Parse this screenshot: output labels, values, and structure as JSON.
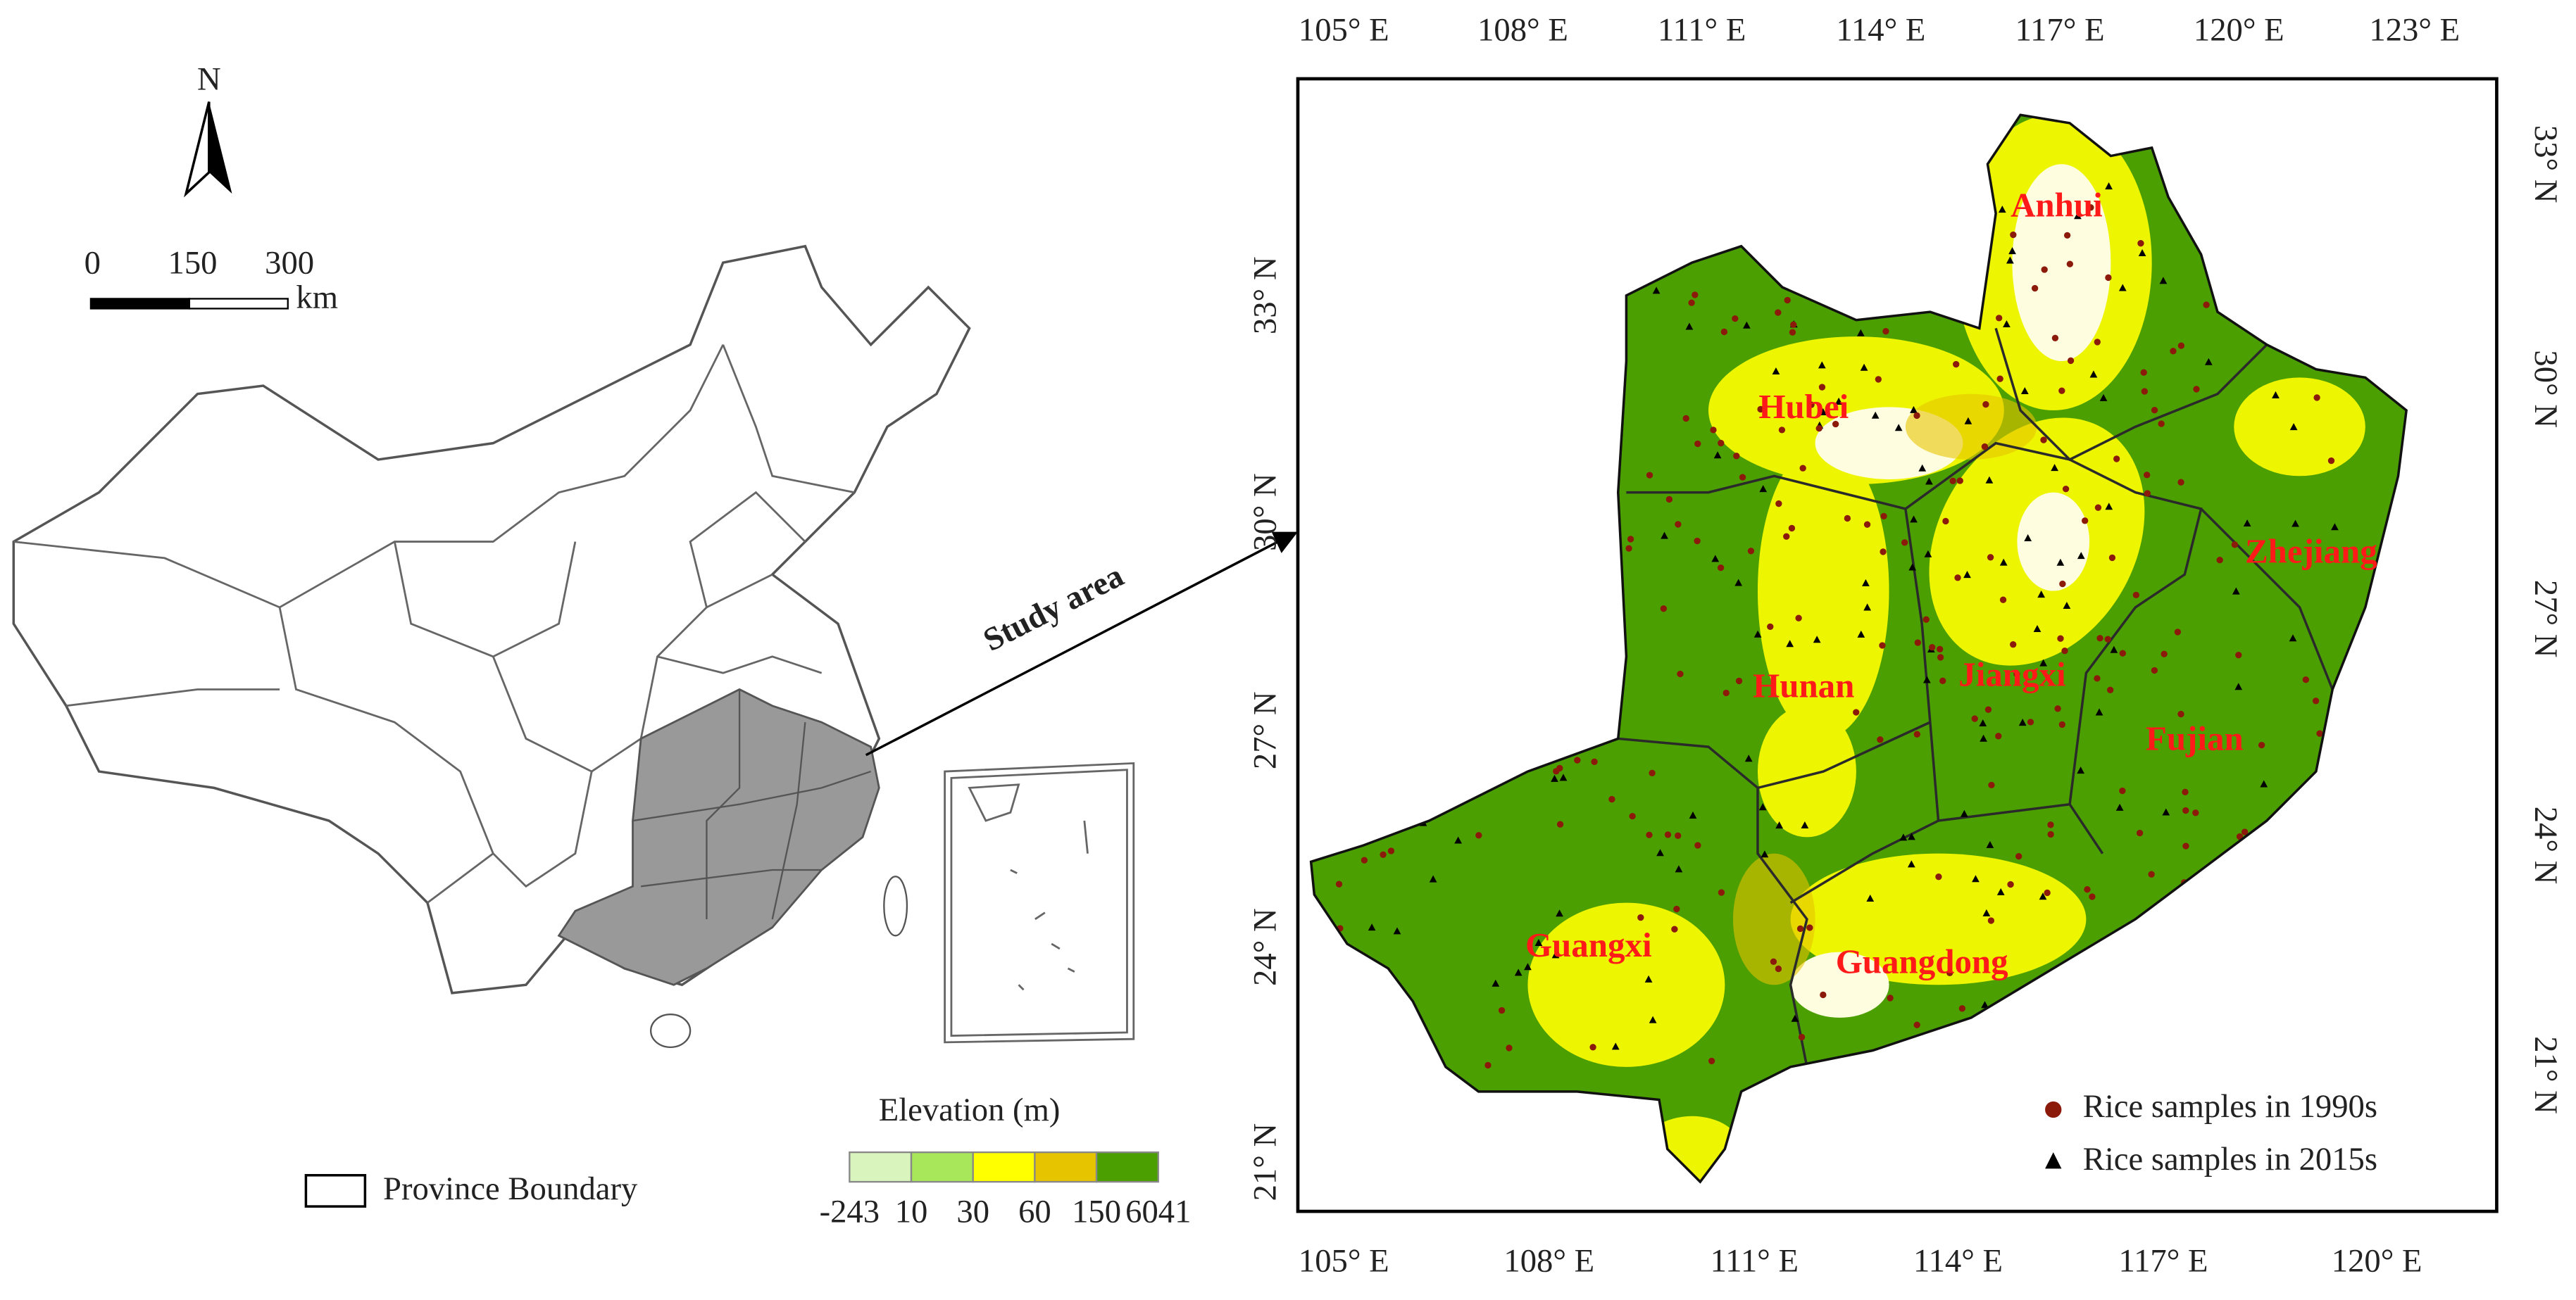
{
  "north_arrow": {
    "label": "N"
  },
  "scale_bar": {
    "labels": [
      "0",
      "150",
      "300"
    ],
    "unit": "km"
  },
  "annotation": "Study area",
  "legend": {
    "province_boundary": "Province Boundary",
    "elevation": {
      "title": "Elevation (m)",
      "colors": [
        "#d9f5bd",
        "#a8e65a",
        "#ffff00",
        "#e6c400",
        "#4c9f00"
      ],
      "breaks": [
        "-243",
        "10",
        "30",
        "60",
        "150",
        "6041"
      ]
    },
    "samples": [
      {
        "label": "Rice samples in 1990s",
        "color": "#8b1a0a",
        "marker": "circle"
      },
      {
        "label": "Rice samples in 2015s",
        "color": "#000000",
        "marker": "triangle"
      }
    ]
  },
  "axes": {
    "top": [
      "105° E",
      "108° E",
      "111° E",
      "114° E",
      "117° E",
      "120° E",
      "123° E"
    ],
    "bottom": [
      "105° E",
      "108° E",
      "111° E",
      "114° E",
      "117° E",
      "120° E"
    ],
    "left": [
      "33° N",
      "30° N",
      "27° N",
      "24° N",
      "21° N"
    ],
    "right": [
      "33° N",
      "30° N",
      "27° N",
      "24° N",
      "21° N"
    ]
  },
  "provinces": [
    "Anhui",
    "Hubei",
    "Zhejiang",
    "Hunan",
    "Jiangxi",
    "Fujian",
    "Guangxi",
    "Guangdong"
  ]
}
